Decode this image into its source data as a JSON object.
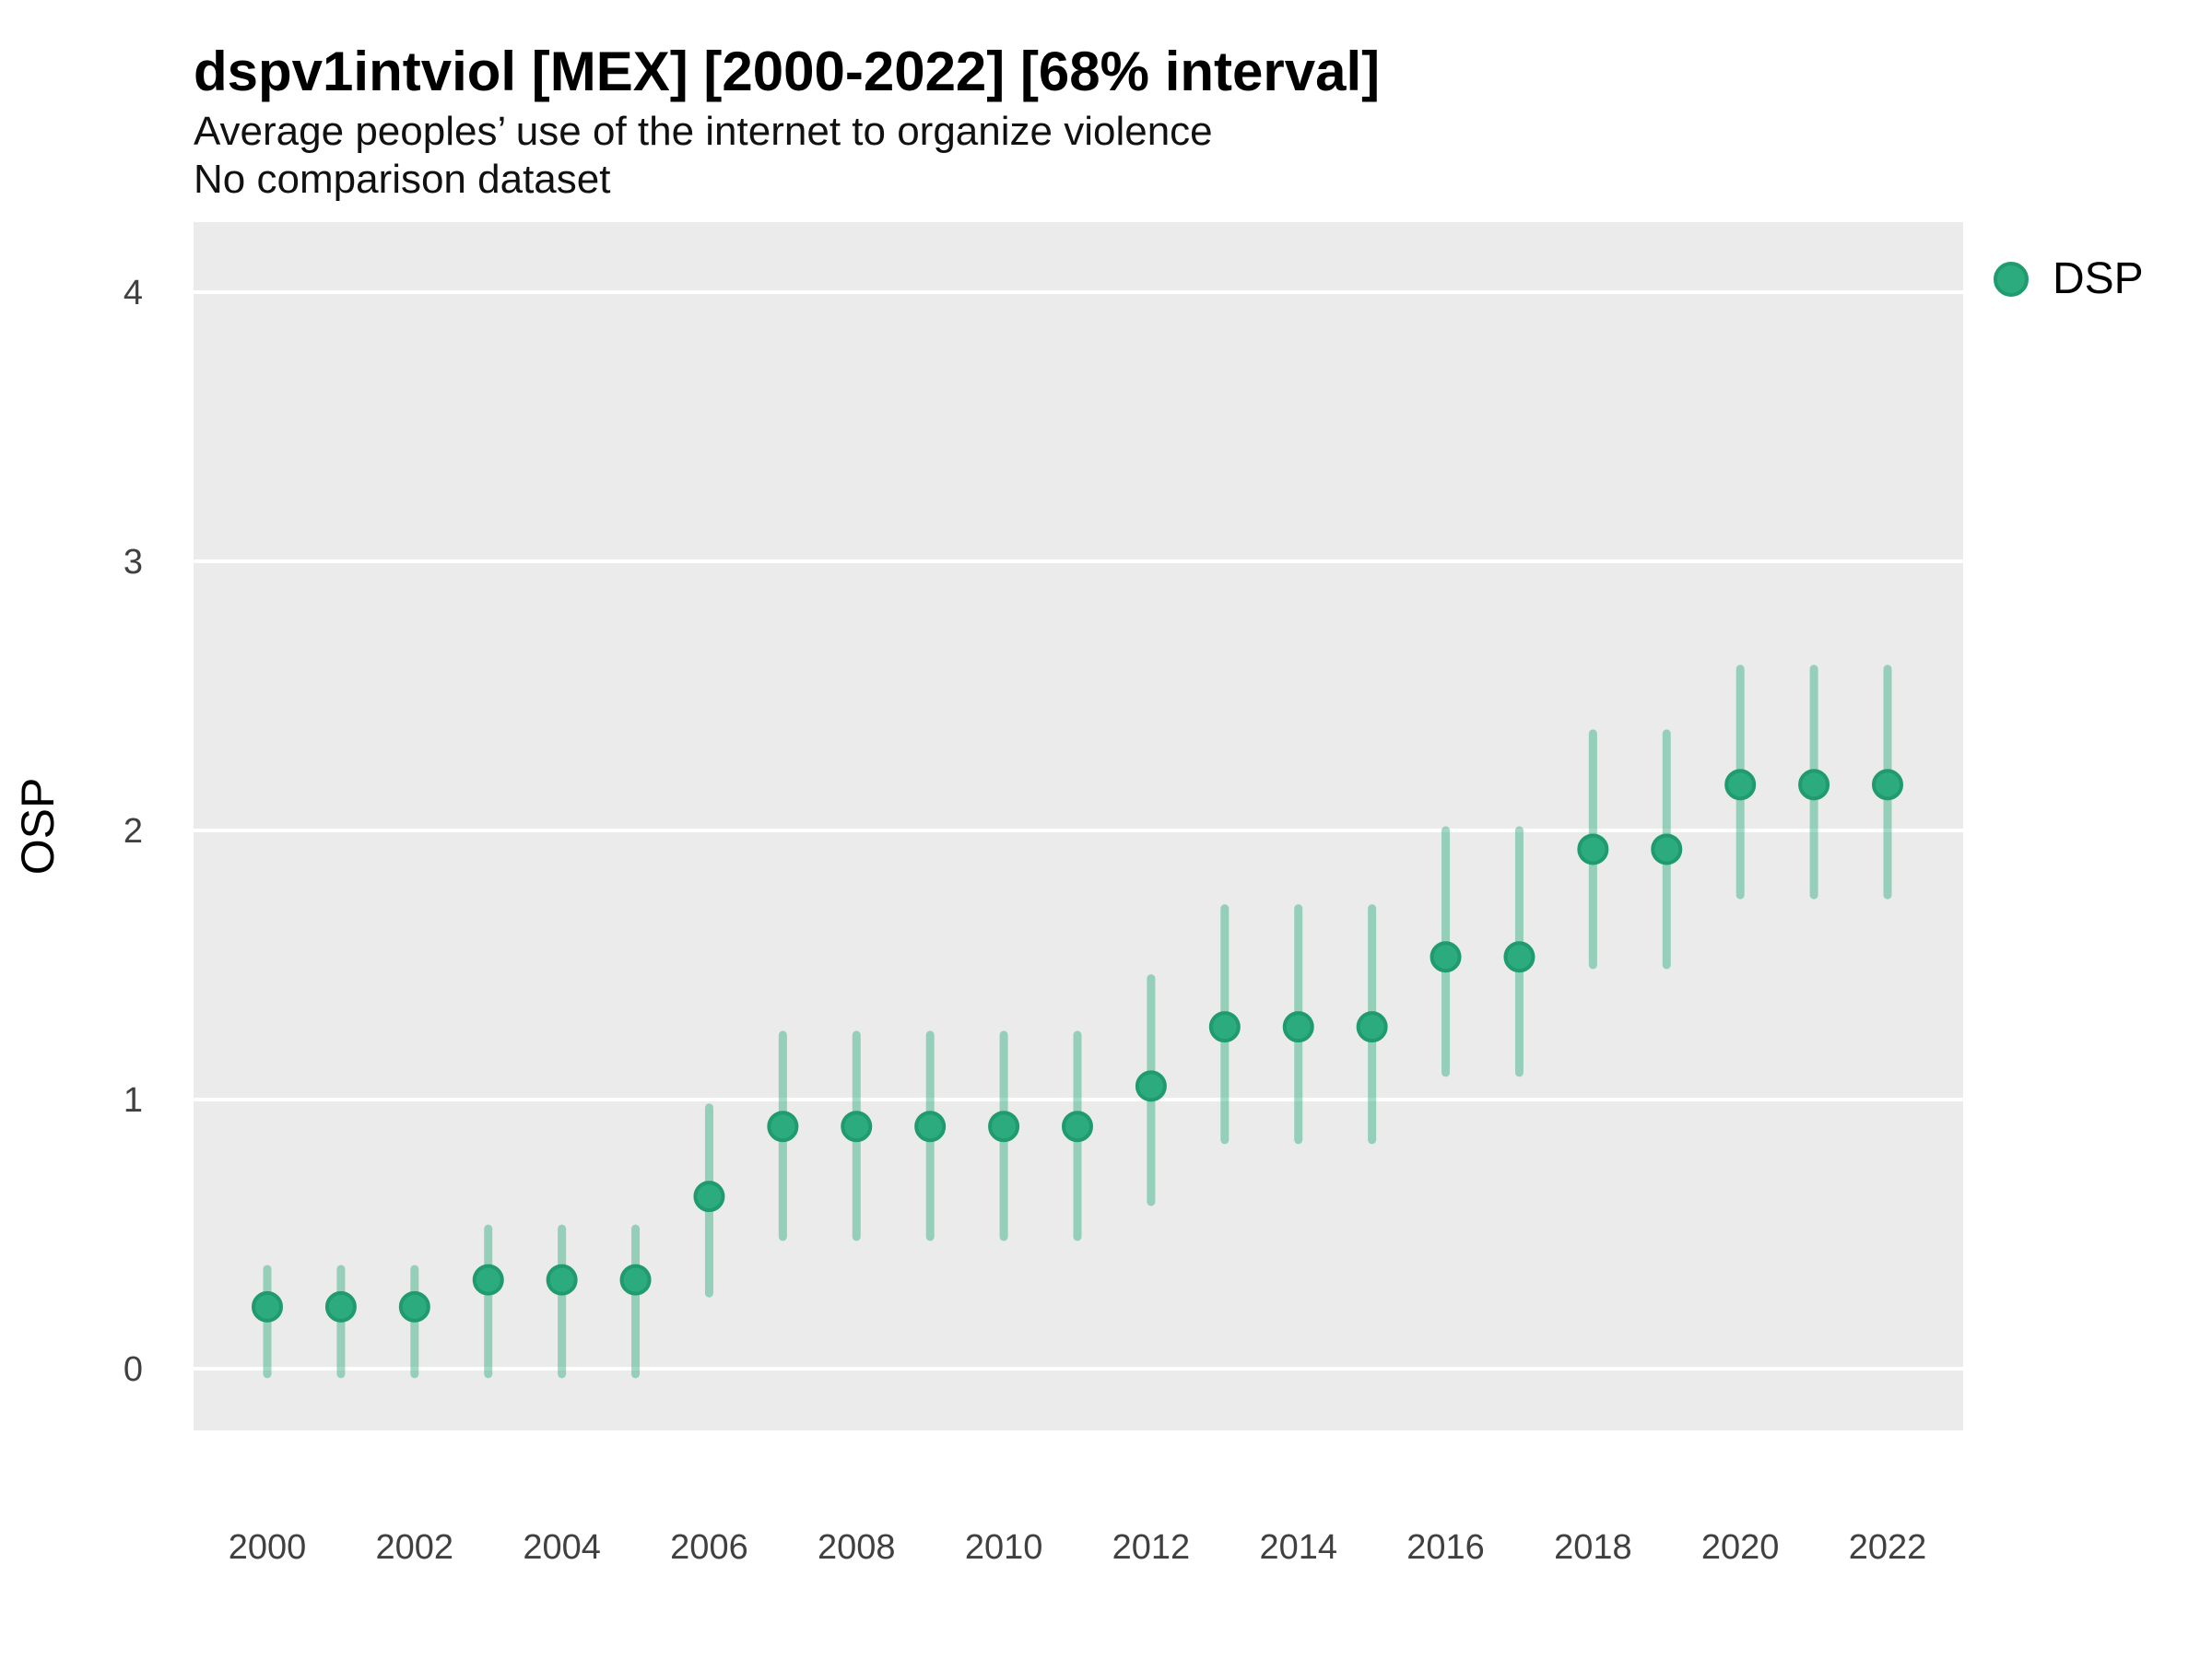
{
  "header": {
    "title": "dspv1intviol [MEX] [2000-2022] [68% interval]",
    "subtitle": "Average peoples’ use of the internet to organize violence",
    "note": "No comparison dataset"
  },
  "legend": {
    "label": "DSP"
  },
  "colors": {
    "plot_bg": "#EBEBEB",
    "gridline": "#FFFFFF",
    "point_fill": "#2CAC7E",
    "point_stroke": "#1F9B6E",
    "interval": "rgba(44,172,126,0.45)",
    "axis_text": "#404040",
    "title_text": "#000000"
  },
  "chart_data": {
    "type": "scatter",
    "title": "dspv1intviol [MEX] [2000-2022] [68% interval]",
    "subtitle": "Average peoples’ use of the internet to organize violence",
    "note": "No comparison dataset",
    "xlabel": "",
    "ylabel": "OSP",
    "legend_entries": [
      "DSP"
    ],
    "legend_position": "right",
    "grid": "major-horizontal-only",
    "x_tick_labels": [
      2000,
      2002,
      2004,
      2006,
      2008,
      2010,
      2012,
      2014,
      2016,
      2018,
      2020,
      2022
    ],
    "y_tick_labels": [
      0,
      1,
      2,
      3,
      4
    ],
    "xlim": [
      1999,
      2023
    ],
    "ylim": [
      -0.23,
      4.26
    ],
    "series": [
      {
        "name": "DSP",
        "interval_level": "68%",
        "points": [
          {
            "year": 2000,
            "value": 0.23,
            "lo": -0.02,
            "hi": 0.37
          },
          {
            "year": 2001,
            "value": 0.23,
            "lo": -0.02,
            "hi": 0.37
          },
          {
            "year": 2002,
            "value": 0.23,
            "lo": -0.02,
            "hi": 0.37
          },
          {
            "year": 2003,
            "value": 0.33,
            "lo": -0.02,
            "hi": 0.52
          },
          {
            "year": 2004,
            "value": 0.33,
            "lo": -0.02,
            "hi": 0.52
          },
          {
            "year": 2005,
            "value": 0.33,
            "lo": -0.02,
            "hi": 0.52
          },
          {
            "year": 2006,
            "value": 0.64,
            "lo": 0.28,
            "hi": 0.97
          },
          {
            "year": 2007,
            "value": 0.9,
            "lo": 0.49,
            "hi": 1.24
          },
          {
            "year": 2008,
            "value": 0.9,
            "lo": 0.49,
            "hi": 1.24
          },
          {
            "year": 2009,
            "value": 0.9,
            "lo": 0.49,
            "hi": 1.24
          },
          {
            "year": 2010,
            "value": 0.9,
            "lo": 0.49,
            "hi": 1.24
          },
          {
            "year": 2011,
            "value": 0.9,
            "lo": 0.49,
            "hi": 1.24
          },
          {
            "year": 2012,
            "value": 1.05,
            "lo": 0.62,
            "hi": 1.45
          },
          {
            "year": 2013,
            "value": 1.27,
            "lo": 0.85,
            "hi": 1.71
          },
          {
            "year": 2014,
            "value": 1.27,
            "lo": 0.85,
            "hi": 1.71
          },
          {
            "year": 2015,
            "value": 1.27,
            "lo": 0.85,
            "hi": 1.71
          },
          {
            "year": 2016,
            "value": 1.53,
            "lo": 1.1,
            "hi": 2.0
          },
          {
            "year": 2017,
            "value": 1.53,
            "lo": 1.1,
            "hi": 2.0
          },
          {
            "year": 2018,
            "value": 1.93,
            "lo": 1.5,
            "hi": 2.36
          },
          {
            "year": 2019,
            "value": 1.93,
            "lo": 1.5,
            "hi": 2.36
          },
          {
            "year": 2020,
            "value": 2.17,
            "lo": 1.76,
            "hi": 2.6
          },
          {
            "year": 2021,
            "value": 2.17,
            "lo": 1.76,
            "hi": 2.6
          },
          {
            "year": 2022,
            "value": 2.17,
            "lo": 1.76,
            "hi": 2.6
          }
        ]
      }
    ]
  }
}
